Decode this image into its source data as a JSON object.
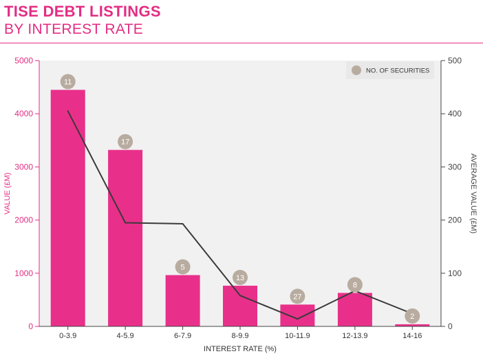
{
  "title": "TISE DEBT LISTINGS",
  "subtitle": "BY INTEREST RATE",
  "colors": {
    "bar": "#e8308a",
    "line": "#3a3a3a",
    "badge": "#b8aca0",
    "accent": "#e32d83",
    "axis_right": "#444444",
    "legend_bg": "#e9e9e9",
    "plot_bg": "#f1f1f1"
  },
  "chart_data": {
    "type": "bar",
    "categories": [
      "0-3.9",
      "4-5.9",
      "6-7.9",
      "8-9.9",
      "10-11.9",
      "12-13.9",
      "14-16"
    ],
    "xlabel": "INTEREST RATE (%)",
    "ylabel_left": "VALUE (£M)",
    "ylabel_right": "AVERAGE VALUE (£M)",
    "ylim_left": [
      0,
      5000
    ],
    "yticks_left": [
      0,
      1000,
      2000,
      3000,
      4000,
      5000
    ],
    "ylim_right": [
      0,
      500
    ],
    "yticks_right": [
      0,
      100,
      200,
      300,
      400,
      500
    ],
    "series": [
      {
        "type": "bar",
        "axis": "left",
        "values": [
          4450,
          3320,
          965,
          765,
          410,
          630,
          40
        ]
      },
      {
        "type": "line",
        "axis": "right",
        "values": [
          405,
          195,
          193,
          58,
          14,
          67,
          24
        ]
      },
      {
        "name": "NO. OF SECURITIES",
        "type": "badge",
        "values": [
          11,
          17,
          5,
          13,
          27,
          8,
          2
        ]
      }
    ],
    "legend": {
      "position": "top-right",
      "label": "NO. OF SECURITIES"
    },
    "grid": false
  }
}
